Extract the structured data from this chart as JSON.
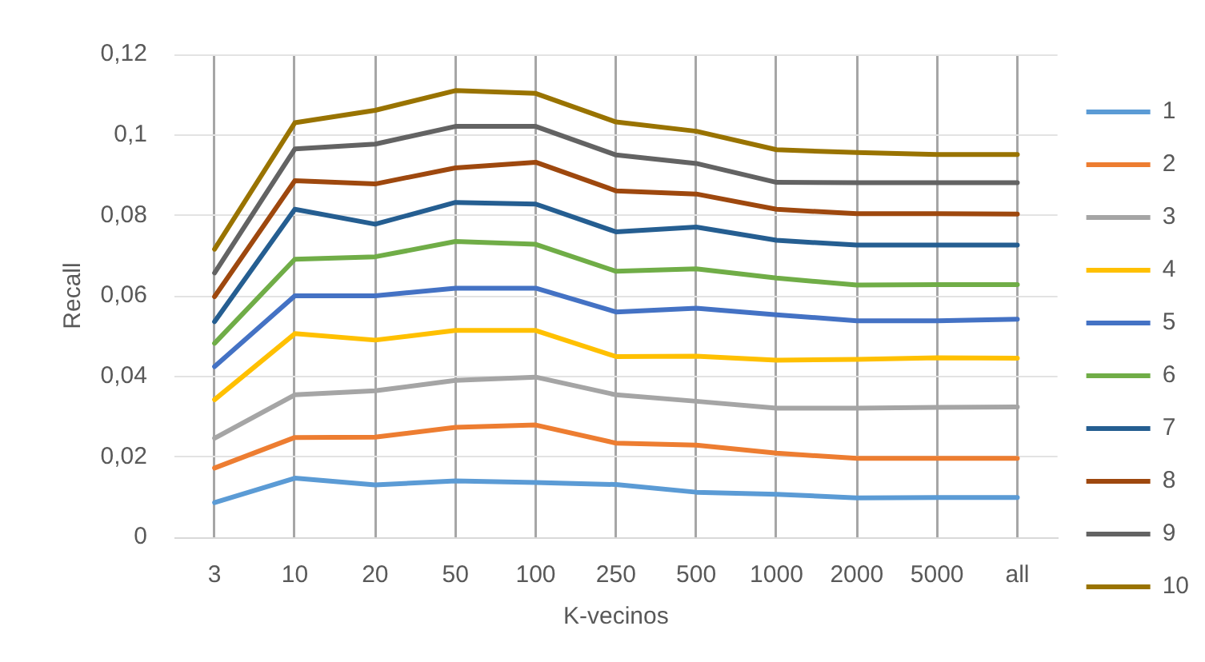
{
  "chart_data": {
    "type": "line",
    "xlabel": "K-vecinos",
    "ylabel": "Recall",
    "categories": [
      "3",
      "10",
      "20",
      "50",
      "100",
      "250",
      "500",
      "1000",
      "2000",
      "5000",
      "all"
    ],
    "ylim": [
      0,
      0.12
    ],
    "yticks": [
      0,
      {
        "value": 0.02,
        "label": "0,02"
      },
      {
        "value": 0.04,
        "label": "0,04"
      },
      {
        "value": 0.06,
        "label": "0,06"
      },
      {
        "value": 0.08,
        "label": "0,08"
      },
      {
        "value": 0.1,
        "label": "0,1"
      },
      {
        "value": 0.12,
        "label": "0,12"
      }
    ],
    "grid": true,
    "legend": "right",
    "series": [
      {
        "name": "1",
        "color": "#5b9bd5",
        "values": [
          0.0086,
          0.0147,
          0.013,
          0.014,
          0.0136,
          0.0131,
          0.0112,
          0.0107,
          0.0098,
          0.0099,
          0.0099
        ]
      },
      {
        "name": "2",
        "color": "#ed7d31",
        "values": [
          0.0172,
          0.0248,
          0.0249,
          0.0273,
          0.0279,
          0.0234,
          0.0229,
          0.0209,
          0.0196,
          0.0196,
          0.0196
        ]
      },
      {
        "name": "3",
        "color": "#a5a5a5",
        "values": [
          0.0246,
          0.0354,
          0.0364,
          0.039,
          0.0398,
          0.0354,
          0.0338,
          0.0321,
          0.0321,
          0.0323,
          0.0324
        ]
      },
      {
        "name": "4",
        "color": "#ffc000",
        "values": [
          0.0342,
          0.0506,
          0.049,
          0.0514,
          0.0514,
          0.0449,
          0.045,
          0.044,
          0.0442,
          0.0446,
          0.0445
        ]
      },
      {
        "name": "5",
        "color": "#4472c4",
        "values": [
          0.0424,
          0.06,
          0.06,
          0.0619,
          0.0619,
          0.056,
          0.0569,
          0.0553,
          0.0538,
          0.0538,
          0.0542
        ]
      },
      {
        "name": "6",
        "color": "#70ad47",
        "values": [
          0.0482,
          0.0691,
          0.0697,
          0.0735,
          0.0728,
          0.0661,
          0.0667,
          0.0644,
          0.0627,
          0.0628,
          0.0628
        ]
      },
      {
        "name": "7",
        "color": "#255e91",
        "values": [
          0.0536,
          0.0815,
          0.0778,
          0.0832,
          0.0828,
          0.0759,
          0.0771,
          0.0738,
          0.0726,
          0.0726,
          0.0726
        ]
      },
      {
        "name": "8",
        "color": "#9e480e",
        "values": [
          0.0598,
          0.0886,
          0.0878,
          0.0918,
          0.0932,
          0.0861,
          0.0853,
          0.0815,
          0.0804,
          0.0804,
          0.0803
        ]
      },
      {
        "name": "9",
        "color": "#636363",
        "values": [
          0.0657,
          0.0965,
          0.0977,
          0.1021,
          0.1021,
          0.095,
          0.0929,
          0.0882,
          0.0881,
          0.0881,
          0.0881
        ]
      },
      {
        "name": "10",
        "color": "#997300",
        "values": [
          0.0716,
          0.103,
          0.1061,
          0.111,
          0.1103,
          0.1032,
          0.1009,
          0.0963,
          0.0956,
          0.0951,
          0.0951
        ]
      }
    ]
  }
}
